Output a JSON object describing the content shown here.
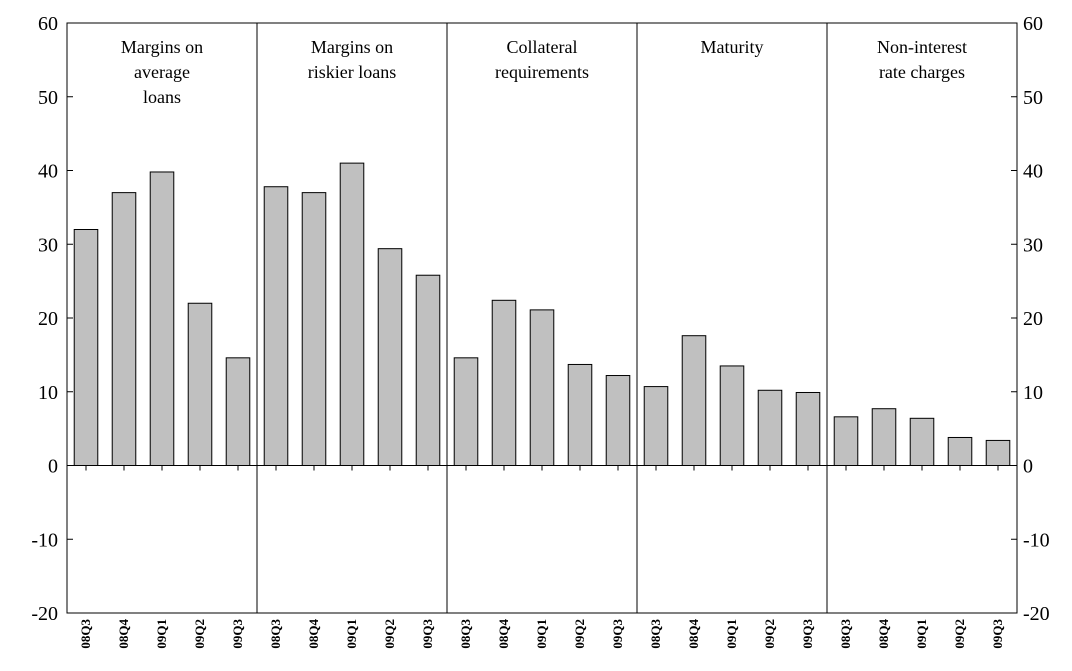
{
  "chart_data": {
    "type": "bar",
    "ylim": [
      -20,
      60
    ],
    "yticks": [
      -20,
      -10,
      0,
      10,
      20,
      30,
      40,
      50,
      60
    ],
    "ytick_labels": [
      "-20",
      "-10",
      "0",
      "10",
      "20",
      "30",
      "40",
      "50",
      "60"
    ],
    "secondary_yaxis": true,
    "grid": false,
    "bar_color": "#c0c0c0",
    "categories": [
      "08Q3",
      "08Q4",
      "09Q1",
      "09Q2",
      "09Q3"
    ],
    "panels": [
      {
        "title_lines": [
          "Margins on",
          "average",
          "loans"
        ],
        "values": [
          32,
          37,
          39.8,
          22,
          14.6
        ]
      },
      {
        "title_lines": [
          "Margins on",
          "riskier loans"
        ],
        "values": [
          37.8,
          37,
          41,
          29.4,
          25.8
        ]
      },
      {
        "title_lines": [
          "Collateral",
          "requirements"
        ],
        "values": [
          14.6,
          22.4,
          21.1,
          13.7,
          12.2
        ]
      },
      {
        "title_lines": [
          "Maturity"
        ],
        "values": [
          10.7,
          17.6,
          13.5,
          10.2,
          9.9
        ]
      },
      {
        "title_lines": [
          "Non-interest",
          "rate charges"
        ],
        "values": [
          6.6,
          7.7,
          6.4,
          3.8,
          3.4
        ]
      }
    ]
  }
}
